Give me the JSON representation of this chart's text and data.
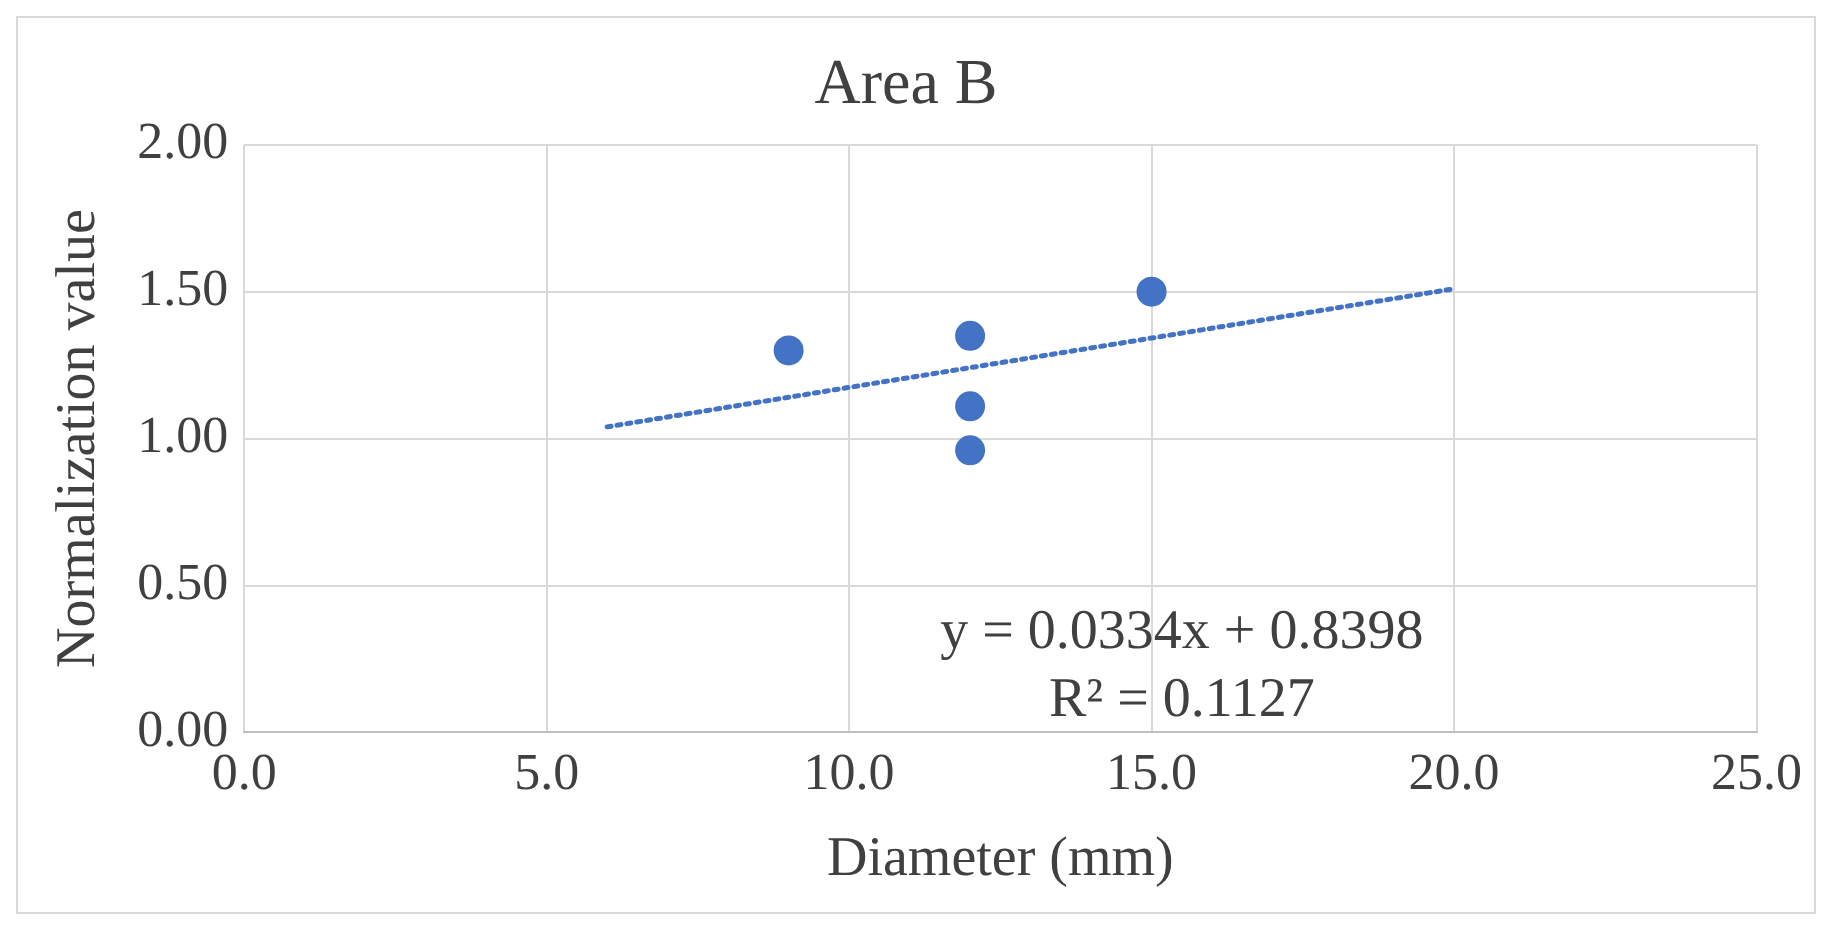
{
  "chart_data": {
    "type": "scatter",
    "title": "Area B",
    "xlabel": "Diameter (mm)",
    "ylabel": "Normalization value",
    "x": [
      9,
      12,
      12,
      12,
      15
    ],
    "series": [
      {
        "color": "#4472c4",
        "values": [
          1.3,
          1.35,
          1.11,
          0.96,
          1.5
        ]
      },
      {
        "type": "line",
        "color": "#4472c4",
        "x": [
          6,
          20
        ],
        "values": [
          1.04,
          1.51
        ],
        "marker": "none",
        "line_style": "dotted"
      }
    ],
    "xlim": [
      0,
      25
    ],
    "xticks": [
      {
        "value": 0,
        "label": "0.0"
      },
      {
        "value": 5,
        "label": "5.0"
      },
      {
        "value": 10,
        "label": "10.0"
      },
      {
        "value": 15,
        "label": "15.0"
      },
      {
        "value": 20,
        "label": "20.0"
      },
      {
        "value": 25,
        "label": "25.0"
      }
    ],
    "ylim": [
      0,
      2
    ],
    "yticks": [
      {
        "value": 0,
        "label": "0.00"
      },
      {
        "value": 0.5,
        "label": "0.50"
      },
      {
        "value": 1,
        "label": "1.00"
      },
      {
        "value": 1.5,
        "label": "1.50"
      },
      {
        "value": 2,
        "label": "2.00"
      }
    ],
    "grid": true,
    "marker": "circle",
    "annotations": [
      "y = 0.0334x + 0.8398",
      "R² = 0.1127"
    ]
  }
}
